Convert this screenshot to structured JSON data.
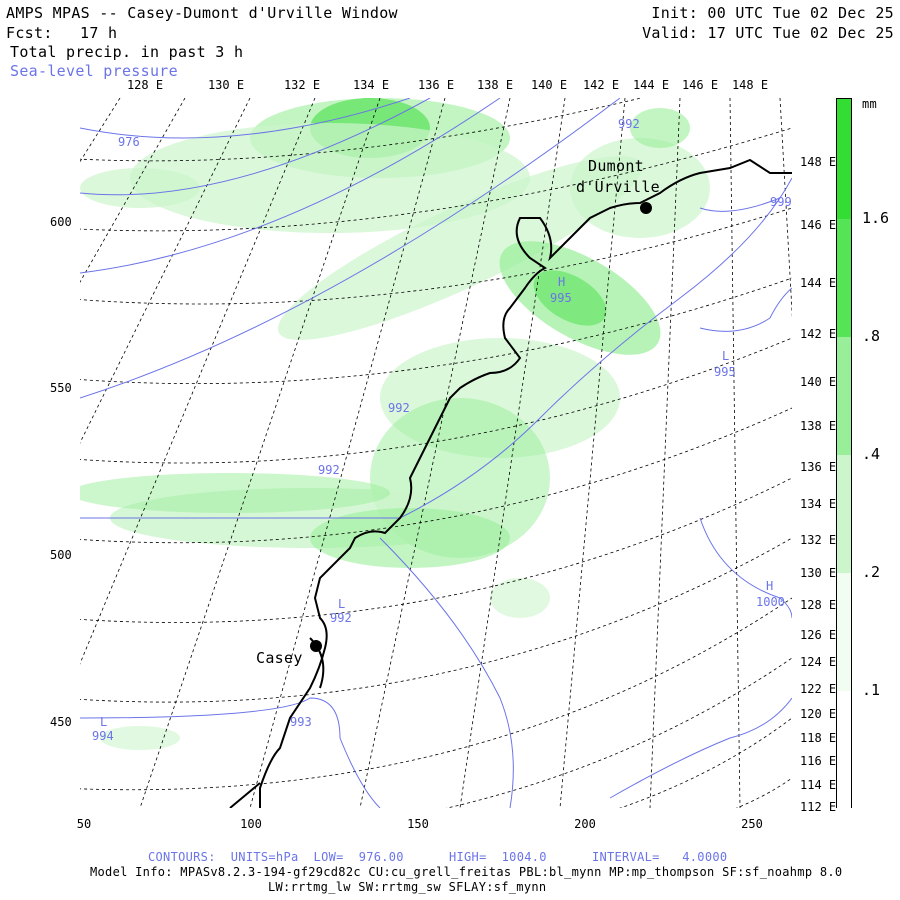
{
  "header": {
    "title": "AMPS MPAS -- Casey-Dumont d'Urville Window",
    "fcst_label": "Fcst:",
    "fcst_value": "17 h",
    "init": "Init: 00 UTC Tue 02 Dec 25",
    "valid": "Valid: 17 UTC Tue 02 Dec 25",
    "field1": "Total precip. in past 3 h",
    "field2": "Sea-level pressure"
  },
  "top_lon_labels": [
    "128 E",
    "130 E",
    "132 E",
    "134 E",
    "136 E",
    "138 E",
    "140 E",
    "142 E",
    "144 E",
    "146 E",
    "148 E"
  ],
  "right_lon_labels": [
    "148 E",
    "146 E",
    "144 E",
    "142 E",
    "140 E",
    "138 E",
    "136 E",
    "134 E",
    "132 E",
    "130 E",
    "128 E",
    "126 E",
    "124 E",
    "122 E",
    "120 E",
    "118 E",
    "116 E",
    "114 E",
    "112 E"
  ],
  "x_axis_labels": [
    "50",
    "100",
    "150",
    "200",
    "250"
  ],
  "y_axis_labels": [
    "600",
    "550",
    "500",
    "450"
  ],
  "colorbar": {
    "unit": "mm",
    "labels": [
      "1.6",
      ".8",
      ".4",
      ".2",
      ".1"
    ],
    "colors": [
      "#33dd33",
      "#55e455",
      "#99ee99",
      "#ccf5cc",
      "#f0fdf0"
    ]
  },
  "places": {
    "dumont_line1": "Dumont",
    "dumont_line2": "d'Urville",
    "casey": "Casey"
  },
  "pressure_labels": [
    {
      "text": "976"
    },
    {
      "text": "992"
    },
    {
      "text": "992"
    },
    {
      "text": "992"
    },
    {
      "text": "992"
    },
    {
      "text": "993"
    },
    {
      "text": "994"
    },
    {
      "text": "995"
    },
    {
      "text": "995"
    },
    {
      "text": "999"
    },
    {
      "text": "1000"
    }
  ],
  "center_marks": [
    {
      "text": "L"
    },
    {
      "text": "L"
    },
    {
      "text": "L"
    },
    {
      "text": "H"
    },
    {
      "text": "H"
    }
  ],
  "footer": {
    "contours": "CONTOURS:  UNITS=hPa  LOW=  976.00      HIGH=  1004.0      INTERVAL=   4.0000",
    "model_info": "Model Info: MPASv8.2.3-194-gf29cd82c CU:cu_grell_freitas PBL:bl_mynn MP:mp_thompson SF:sf_noahmp 8.0",
    "model_info2": "LW:rrtmg_lw SW:rrtmg_sw SFLAY:sf_mynn"
  },
  "colors": {
    "contour": "#6b74e8",
    "coast": "#000000",
    "precip_light": "#ccf5cc",
    "precip_mid": "#99ee99",
    "precip_heavy": "#44dd44"
  }
}
